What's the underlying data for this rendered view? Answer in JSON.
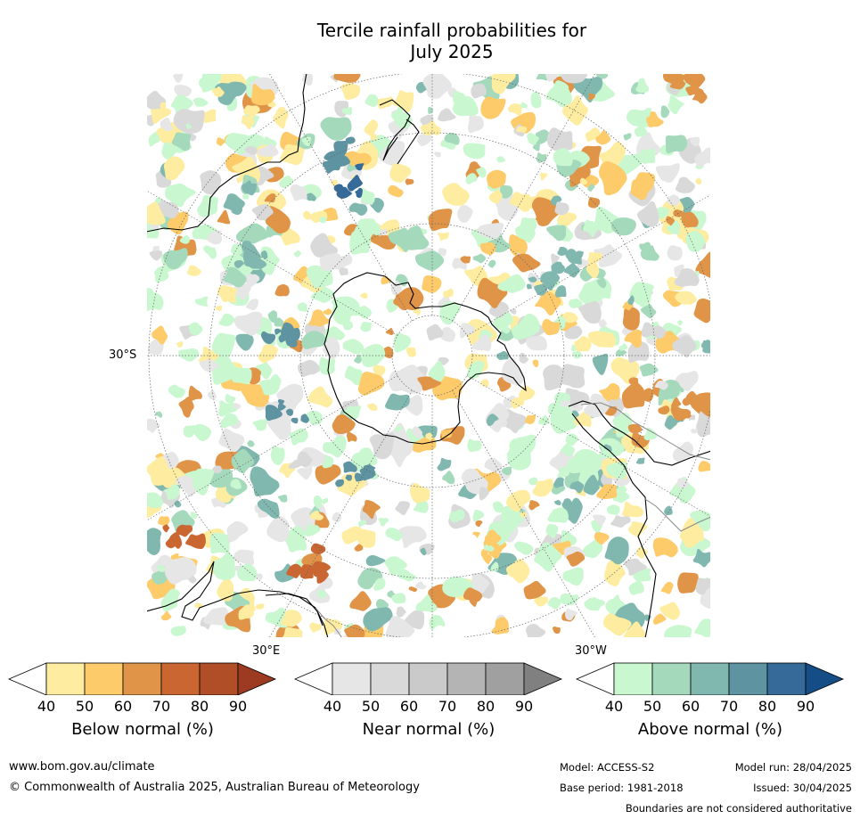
{
  "title_line1": "Tercile rainfall probabilities for",
  "title_line2": "July 2025",
  "map": {
    "projection": "south-polar-stereographic",
    "lat_label": "30°S",
    "lon_label_east": "30°E",
    "lon_label_west": "30°W"
  },
  "legend": {
    "below": {
      "title": "Below normal (%)",
      "ticks": [
        "40",
        "50",
        "60",
        "70",
        "80",
        "90"
      ],
      "colors": [
        "#ffffff",
        "#feeda0",
        "#fdcb6a",
        "#e09447",
        "#c96632",
        "#b04e28",
        "#9c3b22"
      ]
    },
    "near": {
      "title": "Near normal (%)",
      "ticks": [
        "40",
        "50",
        "60",
        "70",
        "80",
        "90"
      ],
      "colors": [
        "#ffffff",
        "#e6e6e6",
        "#d9d9d9",
        "#cacaca",
        "#b4b4b4",
        "#a0a0a0",
        "#808080"
      ]
    },
    "above": {
      "title": "Above normal (%)",
      "ticks": [
        "40",
        "50",
        "60",
        "70",
        "80",
        "90"
      ],
      "colors": [
        "#ffffff",
        "#c9f7cf",
        "#a5d9bc",
        "#80b8b0",
        "#5e93a1",
        "#356a99",
        "#154e86"
      ]
    }
  },
  "footer": {
    "website": "www.bom.gov.au/climate",
    "copyright": "© Commonwealth of Australia 2025, Australian Bureau of Meteorology",
    "model": "Model: ACCESS-S2",
    "base_period": "Base period: 1981-2018",
    "model_run": "Model run: 28/04/2025",
    "issued": "Issued: 30/04/2025",
    "disclaimer": "Boundaries are not considered authoritative"
  }
}
